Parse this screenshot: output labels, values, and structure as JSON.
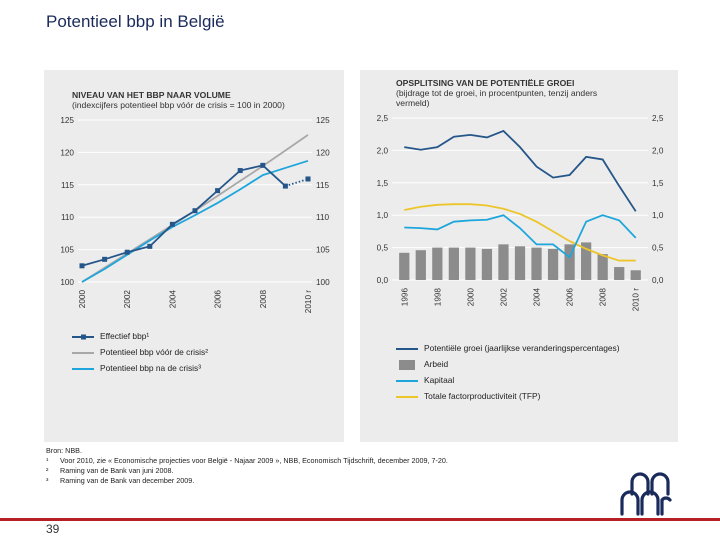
{
  "title": "Potentieel bbp in België",
  "left_chart": {
    "title_line1": "NIVEAU VAN HET BBP NAAR VOLUME",
    "title_line2": "(indexcijfers potentieel bbp vóór de crisis = 100 in 2000)",
    "legend": [
      "Effectief bbp¹",
      "Potentieel bbp vóór de crisis²",
      "Potentieel bbp na de crisis³"
    ],
    "colors": {
      "effective": "#25568a",
      "pre_crisis": "#a8a8a8",
      "post_crisis": "#1ea6dc"
    }
  },
  "right_chart": {
    "title_line1": "OPSPLITSING VAN DE POTENTIËLE GROEI",
    "title_line2": "(bijdrage tot de groei, in procentpunten, tenzij anders",
    "title_line3": "vermeld)",
    "legend": [
      "Potentiële groei (jaarlijkse veranderingspercentages)",
      "Arbeid",
      "Kapitaal",
      "Totale factorproductiviteit (TFP)"
    ],
    "colors": {
      "potential": "#25568a",
      "labour": "#8c8c8c",
      "capital": "#1ea6dc",
      "tfp": "#ecc52a"
    }
  },
  "chart_data": [
    {
      "type": "line",
      "title": "NIVEAU VAN HET BBP NAAR VOLUME",
      "x": [
        2000,
        2001,
        2002,
        2003,
        2004,
        2005,
        2006,
        2007,
        2008,
        2009,
        2010
      ],
      "x_tick_labels": [
        "2000",
        "2002",
        "2004",
        "2006",
        "2008",
        "2010 r"
      ],
      "ylim": [
        100,
        125
      ],
      "y_ticks": [
        100,
        105,
        110,
        115,
        120,
        125
      ],
      "series": [
        {
          "name": "Effectief bbp¹",
          "values": [
            102.5,
            103.5,
            104.6,
            105.5,
            108.9,
            111.0,
            114.1,
            117.2,
            118.0,
            114.8,
            115.9
          ],
          "dotted_from_index": 9
        },
        {
          "name": "Potentieel bbp vóór de crisis²",
          "values": [
            100.0,
            102.2,
            104.4,
            106.6,
            108.8,
            111.0,
            113.3,
            115.6,
            117.9,
            120.3,
            122.7
          ]
        },
        {
          "name": "Potentieel bbp na de crisis³",
          "values": [
            100.0,
            102.0,
            104.2,
            106.4,
            108.5,
            110.3,
            112.2,
            114.3,
            116.5,
            117.6,
            118.7
          ]
        }
      ]
    },
    {
      "type": "bar",
      "title": "OPSPLITSING VAN DE POTENTIËLE GROEI",
      "x": [
        1996,
        1997,
        1998,
        1999,
        2000,
        2001,
        2002,
        2003,
        2004,
        2005,
        2006,
        2007,
        2008,
        2009,
        2010
      ],
      "x_tick_labels": [
        "1996",
        "1998",
        "2000",
        "2002",
        "2004",
        "2006",
        "2008",
        "2010 r"
      ],
      "ylim": [
        0,
        2.5
      ],
      "y_ticks": [
        "0,0",
        "0,5",
        "1,0",
        "1,5",
        "2,0",
        "2,5"
      ],
      "series": [
        {
          "name": "Arbeid",
          "kind": "bar",
          "values": [
            0.42,
            0.46,
            0.5,
            0.5,
            0.5,
            0.48,
            0.55,
            0.52,
            0.5,
            0.48,
            0.55,
            0.58,
            0.4,
            0.2,
            0.15
          ]
        },
        {
          "name": "Potentiële groei (jaarlijkse veranderingspercentages)",
          "kind": "line",
          "values": [
            2.05,
            2.01,
            2.05,
            2.21,
            2.24,
            2.2,
            2.3,
            2.05,
            1.75,
            1.58,
            1.62,
            1.9,
            1.86,
            1.45,
            1.06
          ]
        },
        {
          "name": "Kapitaal",
          "kind": "line",
          "values": [
            0.81,
            0.8,
            0.78,
            0.9,
            0.92,
            0.93,
            1.0,
            0.8,
            0.55,
            0.55,
            0.35,
            0.9,
            1.0,
            0.92,
            0.65
          ]
        },
        {
          "name": "Totale factorproductiviteit (TFP)",
          "kind": "line",
          "values": [
            1.08,
            1.13,
            1.16,
            1.17,
            1.17,
            1.15,
            1.1,
            1.02,
            0.9,
            0.75,
            0.6,
            0.48,
            0.38,
            0.3,
            0.3
          ]
        }
      ]
    }
  ],
  "footnotes": {
    "source": "Bron: NBB.",
    "items": [
      {
        "num": "¹",
        "text": "Voor 2010, zie « Economische projecties voor België - Najaar 2009 », NBB, Economisch Tijdschrift, december 2009, 7-20."
      },
      {
        "num": "²",
        "text": "Raming van de Bank van juni 2008."
      },
      {
        "num": "³",
        "text": "Raming van de Bank van december 2009."
      }
    ]
  },
  "page_number": "39"
}
